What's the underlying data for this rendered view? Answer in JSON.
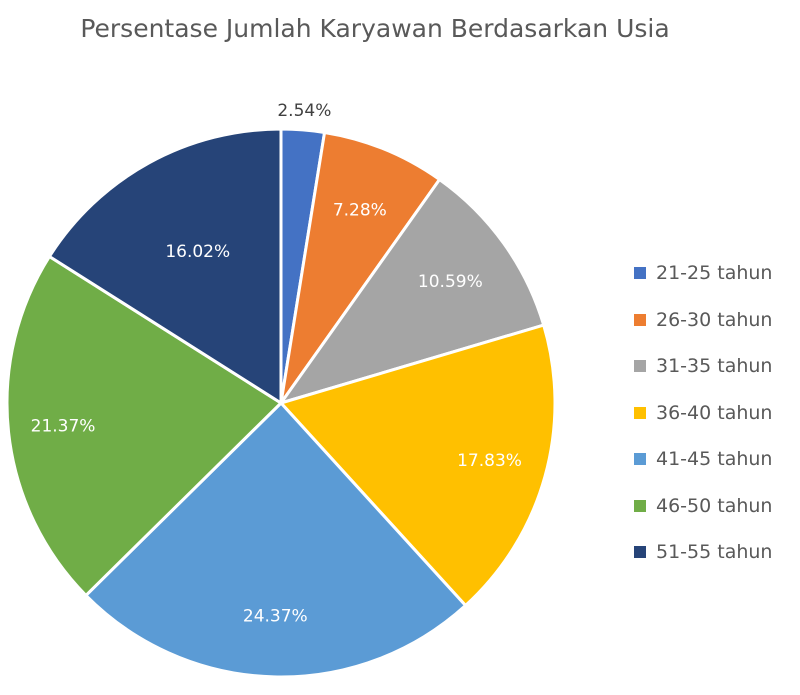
{
  "chart_data": {
    "type": "pie",
    "title": "Persentase Jumlah Karyawan Berdasarkan Usia",
    "legend_position": "right",
    "slices": [
      {
        "label": "21-25 tahun",
        "value": 2.54,
        "display": "2.54%",
        "color": "#4472C4",
        "label_color": "#404040"
      },
      {
        "label": "26-30 tahun",
        "value": 7.28,
        "display": "7.28%",
        "color": "#ED7D31",
        "label_color": "#ffffff"
      },
      {
        "label": "31-35 tahun",
        "value": 10.59,
        "display": "10.59%",
        "color": "#A5A5A5",
        "label_color": "#ffffff"
      },
      {
        "label": "36-40 tahun",
        "value": 17.83,
        "display": "17.83%",
        "color": "#FFC000",
        "label_color": "#ffffff"
      },
      {
        "label": "41-45 tahun",
        "value": 24.37,
        "display": "24.37%",
        "color": "#5B9BD5",
        "label_color": "#ffffff"
      },
      {
        "label": "46-50 tahun",
        "value": 21.37,
        "display": "21.37%",
        "color": "#70AD47",
        "label_color": "#ffffff"
      },
      {
        "label": "51-55 tahun",
        "value": 16.02,
        "display": "16.02%",
        "color": "#264478",
        "label_color": "#ffffff"
      }
    ]
  }
}
